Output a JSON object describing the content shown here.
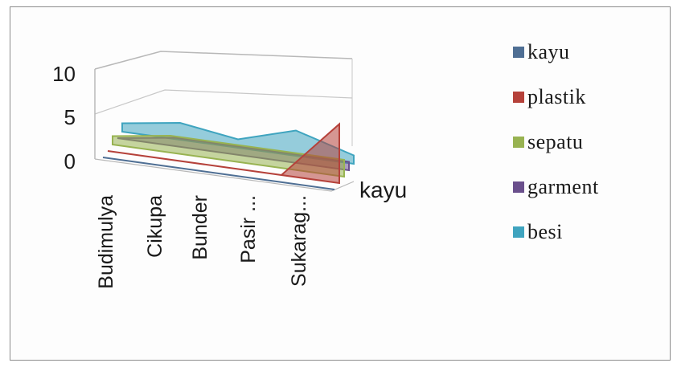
{
  "chart_data": {
    "type": "area",
    "style": "3d-surface",
    "title": "",
    "categories": [
      "Budimulya",
      "Cikupa",
      "Bunder",
      "Pasir ...",
      "Sukarag..."
    ],
    "depth_labels": [
      "kayu"
    ],
    "y_ticks": [
      "10",
      "5",
      "0"
    ],
    "ylim": [
      0,
      10
    ],
    "legend_position": "right",
    "series": [
      {
        "name": "kayu",
        "color": "#4f6f94",
        "values": [
          0,
          0,
          0,
          0,
          0
        ]
      },
      {
        "name": "plastik",
        "color": "#b5413a",
        "values": [
          0,
          0,
          0,
          0,
          7
        ]
      },
      {
        "name": "sepatu",
        "color": "#98b351",
        "values": [
          1,
          2,
          2,
          2,
          2
        ]
      },
      {
        "name": "garment",
        "color": "#6a4f8c",
        "values": [
          0,
          1,
          1,
          1,
          1
        ]
      },
      {
        "name": "besi",
        "color": "#3fa4bf",
        "values": [
          1,
          2,
          1,
          3,
          1
        ]
      }
    ]
  }
}
